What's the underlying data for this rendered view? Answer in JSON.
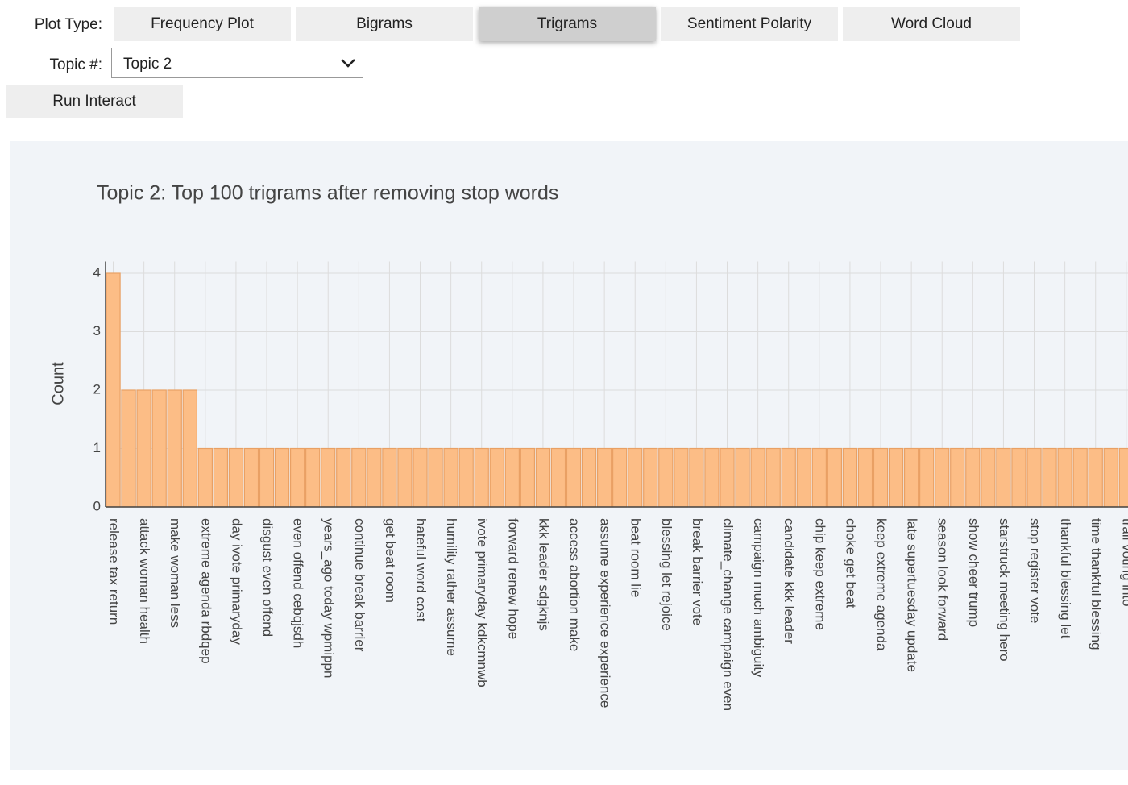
{
  "controls": {
    "plot_type": {
      "label": "Plot Type:",
      "options": [
        "Frequency Plot",
        "Bigrams",
        "Trigrams",
        "Sentiment Polarity",
        "Word Cloud"
      ],
      "selected": 2
    },
    "topic": {
      "label": "Topic #:",
      "value": "Topic 2"
    },
    "run_button": "Run Interact"
  },
  "chart_data": {
    "type": "bar",
    "title": "Topic 2: Top 100 trigrams after removing stop words",
    "y_label": "Count",
    "categories": [
      "release tax return",
      null,
      "attack woman health",
      null,
      "make woman less",
      null,
      "extreme agenda rbdqep",
      null,
      "day ivote primaryday",
      null,
      "disgust even offend",
      null,
      "even offend cebqjsdh",
      null,
      "years_ago today wpmippn",
      null,
      "continue break barrier",
      null,
      "get beat room",
      null,
      "hateful word cost",
      null,
      "humility rather assume",
      null,
      "ivote primaryday kdkcmnwb",
      null,
      "forward renew hope",
      null,
      "kkk leader sdgknjs",
      null,
      "access abortion make",
      null,
      "assume experience experience",
      null,
      "beat room lie",
      null,
      "blessing let rejoice",
      null,
      "break barrier vote",
      null,
      "climate_change campaign even",
      null,
      "campaign much ambiguity",
      null,
      "candidate kkk leader",
      null,
      "chip keep extreme",
      null,
      "choke get beat",
      null,
      "keep extreme agenda",
      null,
      "late supertuesday update",
      null,
      "season look forward",
      null,
      "show cheer trump",
      null,
      "starstruck meeting hero",
      null,
      "stop register vote",
      null,
      "thankful blessing let",
      null,
      "time thankful blessing",
      null,
      "trail voting into"
    ],
    "values": [
      4,
      2,
      2,
      2,
      2,
      2,
      1,
      1,
      1,
      1,
      1,
      1,
      1,
      1,
      1,
      1,
      1,
      1,
      1,
      1,
      1,
      1,
      1,
      1,
      1,
      1,
      1,
      1,
      1,
      1,
      1,
      1,
      1,
      1,
      1,
      1,
      1,
      1,
      1,
      1,
      1,
      1,
      1,
      1,
      1,
      1,
      1,
      1,
      1,
      1,
      1,
      1,
      1,
      1,
      1,
      1,
      1,
      1,
      1,
      1,
      1,
      1,
      1,
      1,
      1,
      1,
      1
    ],
    "color": "#fcbd86",
    "ylim": [
      0,
      4.2
    ],
    "yticks": [
      0,
      1,
      2,
      3,
      4
    ],
    "grid": true
  }
}
